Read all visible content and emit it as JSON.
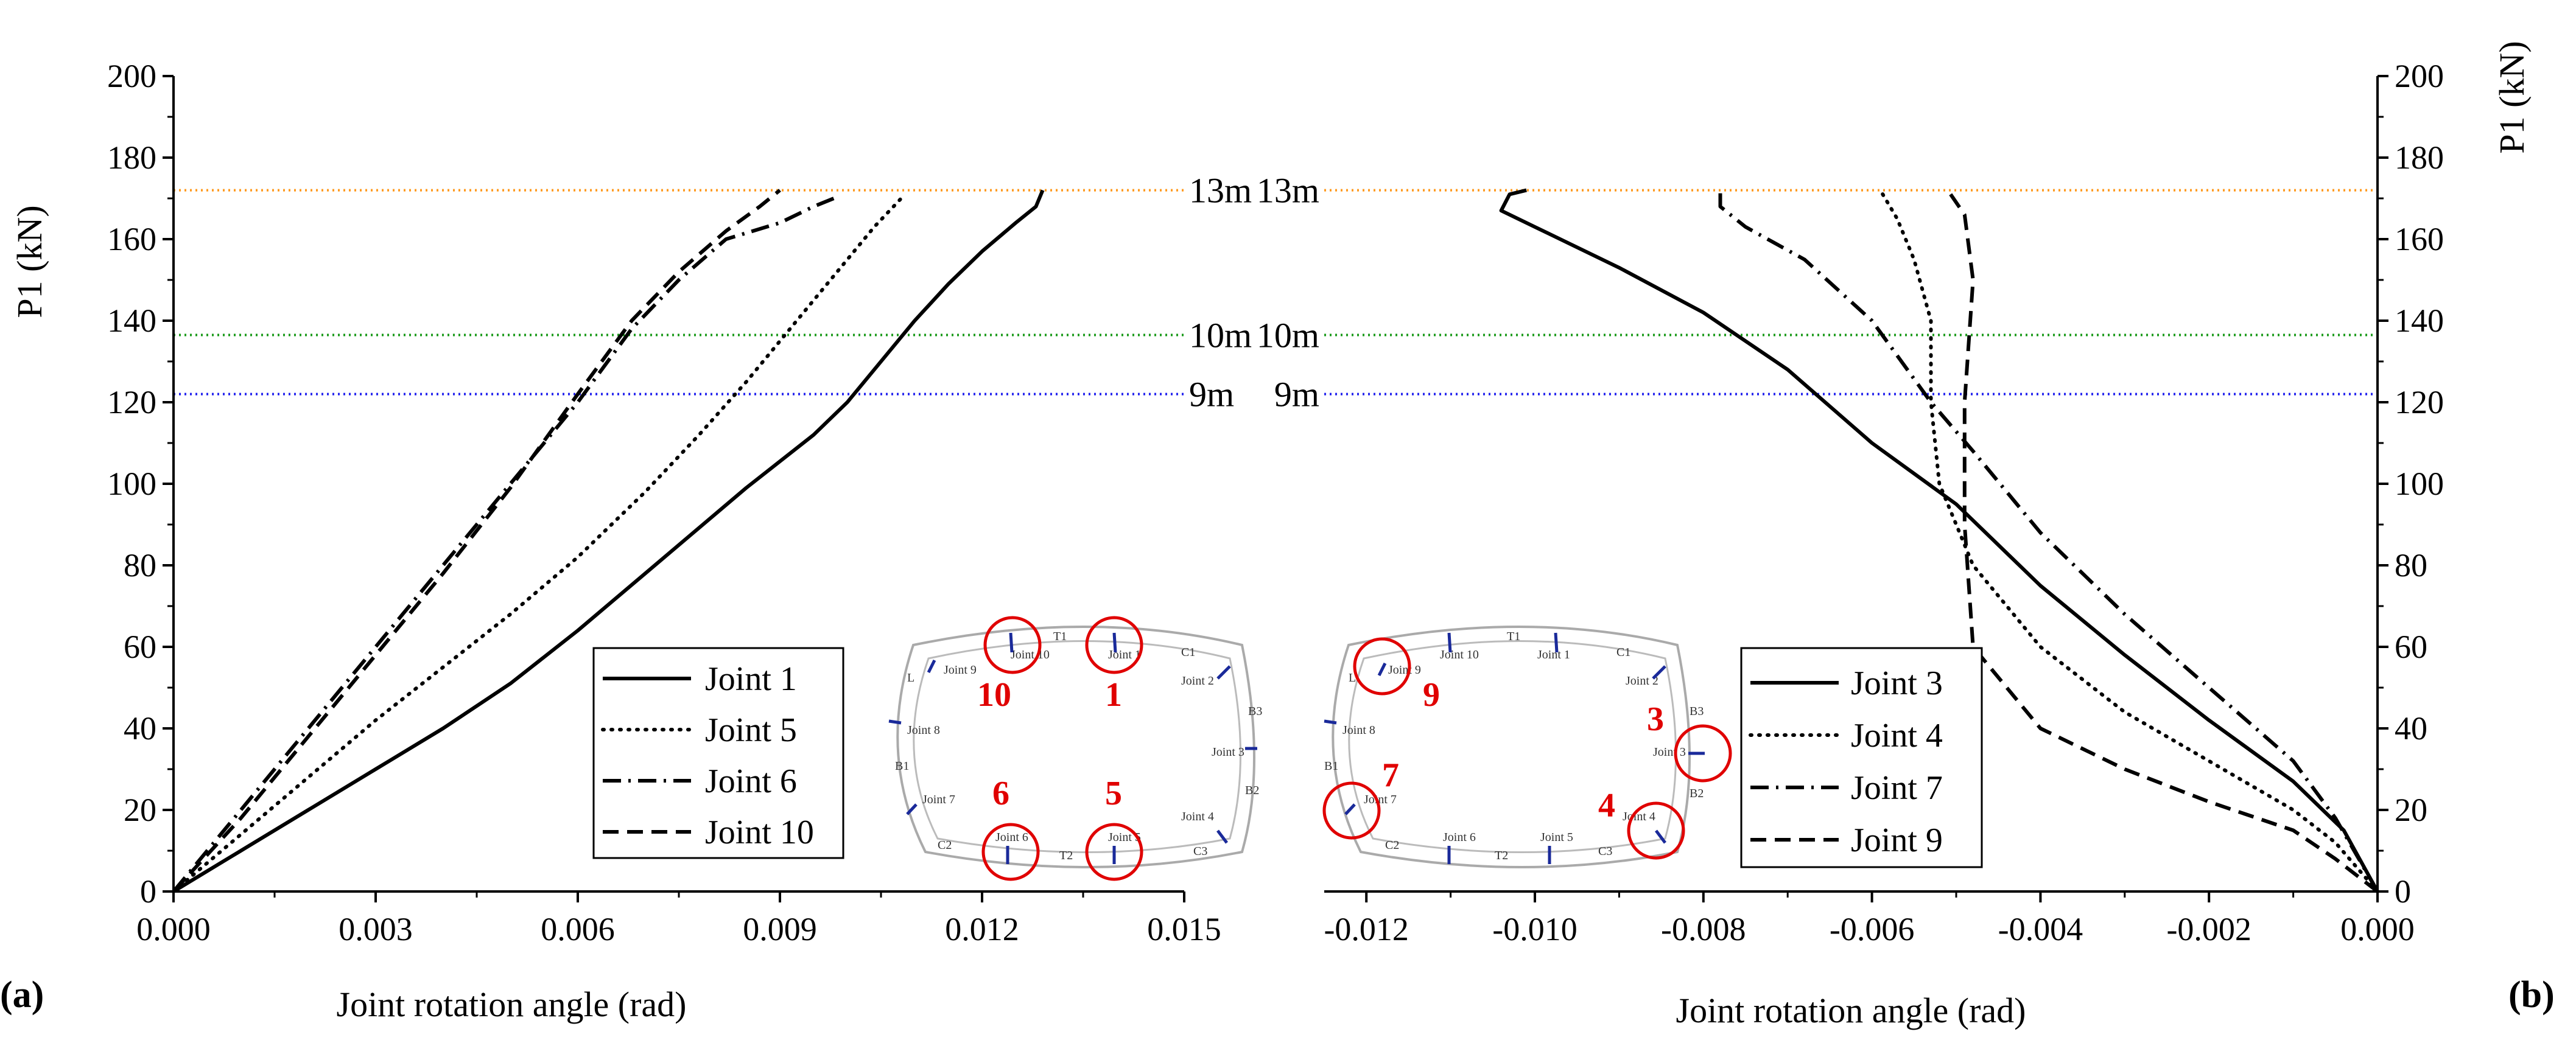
{
  "panel_labels": {
    "a": "(a)",
    "b": "(b)"
  },
  "chart_data": [
    {
      "type": "line",
      "panel": "(a)",
      "xlabel": "Joint rotation angle (rad)",
      "ylabel": "P1 (kN)",
      "xlim": [
        0,
        0.015
      ],
      "ylim": [
        0,
        200
      ],
      "xticks": [
        "0.000",
        "0.003",
        "0.006",
        "0.009",
        "0.012",
        "0.015"
      ],
      "yticks": [
        "0",
        "20",
        "40",
        "60",
        "80",
        "100",
        "120",
        "140",
        "160",
        "180",
        "200"
      ],
      "hlines": [
        {
          "label": "13m",
          "y": 172,
          "color": "#ff9a1f"
        },
        {
          "label": "10m",
          "y": 136.5,
          "color": "#1a9a1a"
        },
        {
          "label": "9m",
          "y": 122,
          "color": "#2222ee"
        }
      ],
      "legend": {
        "position": "bottom-center"
      },
      "series": [
        {
          "name": "Joint 1",
          "style": "solid",
          "x": [
            0,
            0.001,
            0.002,
            0.003,
            0.004,
            0.005,
            0.006,
            0.007,
            0.0085,
            0.0095,
            0.01,
            0.0105,
            0.011,
            0.0115,
            0.012,
            0.0125,
            0.0128,
            0.0129
          ],
          "y": [
            0,
            10,
            20,
            30,
            40,
            51,
            64,
            78,
            99,
            112,
            120,
            130,
            140,
            149,
            157,
            164,
            168,
            172
          ]
        },
        {
          "name": "Joint 5",
          "style": "dotted",
          "x": [
            0,
            0.001,
            0.002,
            0.003,
            0.004,
            0.005,
            0.006,
            0.007,
            0.0078,
            0.0085,
            0.009,
            0.0095,
            0.01,
            0.0104,
            0.0108
          ],
          "y": [
            0,
            14,
            28,
            42,
            55,
            68,
            82,
            98,
            112,
            125,
            135,
            145,
            155,
            163,
            170
          ]
        },
        {
          "name": "Joint 6",
          "style": "dashdot",
          "x": [
            0,
            0.001,
            0.002,
            0.003,
            0.004,
            0.005,
            0.006,
            0.0068,
            0.0075,
            0.0082,
            0.009,
            0.0095,
            0.0098
          ],
          "y": [
            0,
            20,
            40,
            60,
            80,
            100,
            120,
            138,
            150,
            160,
            164,
            168,
            170
          ]
        },
        {
          "name": "Joint 10",
          "style": "dashed",
          "x": [
            0,
            0.001,
            0.002,
            0.003,
            0.004,
            0.005,
            0.006,
            0.0068,
            0.0075,
            0.0082,
            0.0087,
            0.009
          ],
          "y": [
            0,
            18,
            38,
            58,
            78,
            99,
            122,
            140,
            152,
            162,
            168,
            172
          ]
        }
      ]
    },
    {
      "type": "line",
      "panel": "(b)",
      "xlabel": "Joint rotation angle (rad)",
      "ylabel": "P1 (kN)",
      "xlim": [
        -0.0125,
        0
      ],
      "ylim": [
        0,
        200
      ],
      "xticks": [
        "-0.012",
        "-0.010",
        "-0.008",
        "-0.006",
        "-0.004",
        "-0.002",
        "0.000"
      ],
      "yticks": [
        "0",
        "20",
        "40",
        "60",
        "80",
        "100",
        "120",
        "140",
        "160",
        "180",
        "200"
      ],
      "hlines": [
        {
          "label": "13m",
          "y": 172,
          "color": "#ff9a1f"
        },
        {
          "label": "10m",
          "y": 136.5,
          "color": "#1a9a1a"
        },
        {
          "label": "9m",
          "y": 122,
          "color": "#2222ee"
        }
      ],
      "legend": {
        "position": "bottom-center"
      },
      "series": [
        {
          "name": "Joint 3",
          "style": "solid",
          "x": [
            0,
            -0.0004,
            -0.001,
            -0.002,
            -0.003,
            -0.004,
            -0.005,
            -0.006,
            -0.007,
            -0.008,
            -0.009,
            -0.01,
            -0.0104,
            -0.0103,
            -0.0101
          ],
          "y": [
            0,
            15,
            27,
            42,
            58,
            75,
            95,
            110,
            128,
            142,
            153,
            163,
            167,
            171,
            172
          ]
        },
        {
          "name": "Joint 4",
          "style": "dotted",
          "x": [
            0,
            -0.0005,
            -0.001,
            -0.002,
            -0.003,
            -0.004,
            -0.0048,
            -0.0052,
            -0.0053,
            -0.0053,
            -0.0055,
            -0.0057,
            -0.0059
          ],
          "y": [
            0,
            12,
            20,
            32,
            44,
            60,
            80,
            100,
            120,
            140,
            155,
            165,
            172
          ]
        },
        {
          "name": "Joint 7",
          "style": "dashdot",
          "x": [
            0,
            -0.0005,
            -0.001,
            -0.002,
            -0.003,
            -0.004,
            -0.0048,
            -0.0053,
            -0.006,
            -0.0068,
            -0.0075,
            -0.0078,
            -0.0078
          ],
          "y": [
            0,
            18,
            32,
            50,
            68,
            88,
            108,
            120,
            140,
            155,
            163,
            168,
            172
          ]
        },
        {
          "name": "Joint 9",
          "style": "dashed",
          "x": [
            0,
            -0.0005,
            -0.001,
            -0.002,
            -0.003,
            -0.004,
            -0.0048,
            -0.0049,
            -0.0049,
            -0.0048,
            -0.0049,
            -0.0051
          ],
          "y": [
            0,
            8,
            15,
            22,
            30,
            40,
            60,
            90,
            120,
            150,
            166,
            172
          ]
        }
      ]
    }
  ],
  "schematic": {
    "left": {
      "segments": [
        "T1",
        "C1",
        "B3",
        "B2",
        "C3",
        "T2",
        "C2",
        "B1",
        "L"
      ],
      "joints": [
        "Joint 10",
        "Joint 1",
        "Joint 2",
        "Joint 3",
        "Joint 4",
        "Joint 5",
        "Joint 6",
        "Joint 7",
        "Joint 8",
        "Joint 9"
      ],
      "highlights": [
        "10",
        "1",
        "6",
        "5"
      ]
    },
    "right": {
      "segments": [
        "T1",
        "C1",
        "B3",
        "B2",
        "C3",
        "T2",
        "C2",
        "B1",
        "L"
      ],
      "joints": [
        "Joint 10",
        "Joint 1",
        "Joint 2",
        "Joint 3",
        "Joint 4",
        "Joint 5",
        "Joint 6",
        "Joint 7",
        "Joint 8",
        "Joint 9"
      ],
      "highlights": [
        "9",
        "3",
        "7",
        "4"
      ]
    }
  }
}
